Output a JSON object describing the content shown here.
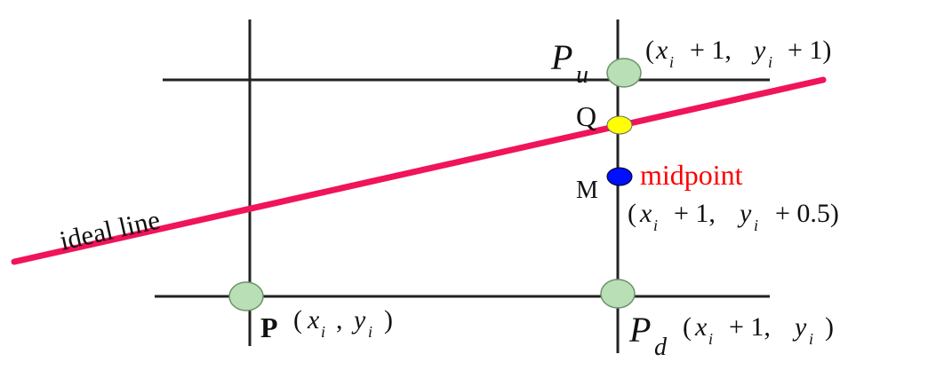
{
  "colors": {
    "grid": "#222222",
    "ideal_line": "#f0145a",
    "pixel_fill": "#b9dfb6",
    "pixel_stroke": "#6e8f6c",
    "q_fill": "#ffff00",
    "m_fill": "#0010ff",
    "midpoint_text": "#ff0000",
    "text": "#111111"
  },
  "labels": {
    "ideal_line": "ideal line",
    "point_p": "P",
    "point_pu": "P",
    "point_pu_sub": "u",
    "point_pd": "P",
    "point_pd_sub": "d",
    "point_q": "Q",
    "point_m": "M",
    "midpoint": "midpoint"
  },
  "coords": {
    "p": {
      "open": "(",
      "x": "x",
      "xs": "i",
      "sep": ",",
      "y": "y",
      "ys": "i",
      "close": ")"
    },
    "pu": {
      "open": "(",
      "x": "x",
      "xs": "i",
      "plus1": "+ 1,",
      "y": "y",
      "ys": "i",
      "plus2": "+ 1)"
    },
    "m": {
      "open": "(",
      "x": "x",
      "xs": "i",
      "plus1": "+ 1,",
      "y": "y",
      "ys": "i",
      "plus2": "+ 0.5)"
    },
    "pd": {
      "open": "(",
      "x": "x",
      "xs": "i",
      "plus1": "+ 1,",
      "y": "y",
      "ys": "i",
      "close": ")"
    }
  }
}
